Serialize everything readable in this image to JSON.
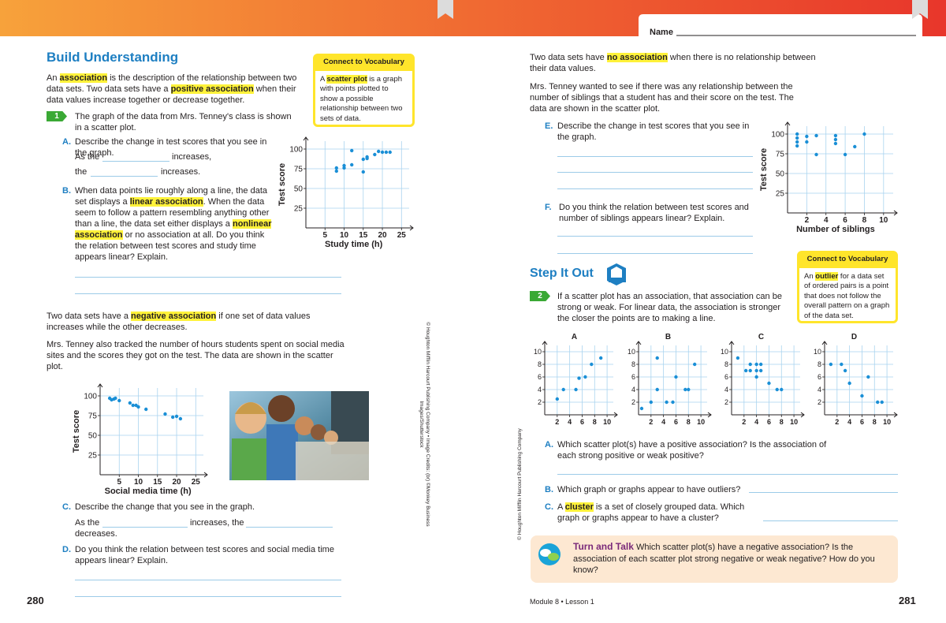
{
  "header": {
    "name_label": "Name"
  },
  "left": {
    "heading": "Build Understanding",
    "vocab1": {
      "title": "Connect to Vocabulary",
      "parts": [
        "A ",
        "scatter plot",
        " is a graph with points plotted to show a possible relationship between two sets of data."
      ]
    },
    "intro": [
      "An ",
      "association",
      " is the description of the relationship between two data sets. Two data sets have a ",
      "positive association",
      " when their data values increase together or decrease together."
    ],
    "step1": {
      "number": "1",
      "text": "The graph of the data from Mrs. Tenney's class is shown in a scatter plot."
    },
    "A": {
      "letter": "A.",
      "text": "Describe the change in test scores that you see in the graph.",
      "line1": [
        "As the",
        "increases,"
      ],
      "line2": [
        "the",
        "increases."
      ]
    },
    "B": {
      "letter": "B.",
      "parts": [
        "When data points lie roughly along a line, the data set displays a ",
        "linear association",
        ". When the data seem to follow a pattern resembling anything other than a line, the data set either displays a ",
        "nonlinear association",
        " or no association at all. Do you think the relation between test scores and study time appears linear? Explain."
      ]
    },
    "negative": [
      "Two data sets have a ",
      "negative association",
      " if one set of data values increases while the other decreases."
    ],
    "tracked": "Mrs. Tenney also tracked the number of hours students spent on social media sites and the scores they got on the test. The data are shown in the scatter plot.",
    "C": {
      "letter": "C.",
      "text": "Describe the change that you see in the graph.",
      "line": [
        "As the",
        "increases, the",
        "decreases."
      ]
    },
    "D": {
      "letter": "D.",
      "text": "Do you think the relation between test scores and social media time appears linear? Explain."
    },
    "credit": "© Houghton Mifflin Harcourt Publishing Company • Image Credits: (br) ©Monkey Business Images/Shutterstock",
    "page_number": "280"
  },
  "right": {
    "no_assoc": [
      "Two data sets have ",
      "no association",
      " when there is no relationship between their data values."
    ],
    "siblings": "Mrs. Tenney wanted to see if there was any relationship between the number of siblings that a student has and their score on the test. The data are shown in the scatter plot.",
    "E": {
      "letter": "E.",
      "text": "Describe the change in test scores that you see in the graph."
    },
    "F": {
      "letter": "F.",
      "text": "Do you think the relation between test scores and number of siblings appears linear? Explain."
    },
    "step_out": "Step It Out",
    "vocab2": {
      "title": "Connect to Vocabulary",
      "parts": [
        "An ",
        "outlier",
        " for a data set of ordered pairs is a point that does not follow the overall pattern on a graph of the data set."
      ]
    },
    "step2": {
      "number": "2",
      "text": "If a scatter plot has an association, that association can be strong or weak. For linear data, the association is stronger the closer the points are to making a line."
    },
    "qA": {
      "letter": "A.",
      "text": "Which scatter plot(s) have a positive association? Is the association of each strong positive or weak positive?"
    },
    "qB": {
      "letter": "B.",
      "text": "Which graph or graphs appear to have outliers?"
    },
    "qC": {
      "letter": "C.",
      "parts": [
        "A ",
        "cluster",
        " is a set of closely grouped data. Which graph or graphs appear to have a cluster?"
      ]
    },
    "turn": {
      "title": "Turn and Talk",
      "text": "Which scatter plot(s) have a negative association? Is the association of each scatter plot strong negative or weak negative? How do you know?"
    },
    "credit": "© Houghton Mifflin Harcourt Publishing Company",
    "footer": "Module 8 • Lesson 1",
    "page_number": "281"
  },
  "chart_data": [
    {
      "type": "scatter",
      "x_label": "Study time (h)",
      "y_label": "Test score",
      "color": "#1a8fd6",
      "xlim": [
        0,
        27
      ],
      "ylim": [
        0,
        110
      ],
      "xticks": [
        5,
        10,
        15,
        20,
        25
      ],
      "yticks": [
        25,
        50,
        75,
        100
      ],
      "x": [
        8,
        8,
        10,
        10,
        12,
        12,
        15,
        15,
        16,
        16,
        18,
        19,
        20,
        21,
        22
      ],
      "values": [
        72,
        76,
        76,
        79,
        80,
        98,
        71,
        87,
        90,
        88,
        93,
        97,
        96,
        96,
        96
      ]
    },
    {
      "type": "scatter",
      "x_label": "Social media time (h)",
      "y_label": "Test score",
      "color": "#1a8fd6",
      "xlim": [
        0,
        27
      ],
      "ylim": [
        0,
        110
      ],
      "xticks": [
        5,
        10,
        15,
        20,
        25
      ],
      "yticks": [
        25,
        50,
        75,
        100
      ],
      "x": [
        2.5,
        3,
        3.6,
        4,
        5,
        7.8,
        8.6,
        9.4,
        10,
        12,
        17,
        19,
        20,
        21
      ],
      "values": [
        97,
        95,
        96,
        97,
        94,
        91,
        88,
        88,
        86,
        83,
        77,
        73,
        74,
        71
      ]
    },
    {
      "type": "scatter",
      "x_label": "Number of siblings",
      "y_label": "Test score",
      "color": "#1a8fd6",
      "xlim": [
        0,
        11
      ],
      "ylim": [
        0,
        110
      ],
      "xticks": [
        2,
        4,
        6,
        8,
        10
      ],
      "yticks": [
        25,
        50,
        75,
        100
      ],
      "x": [
        1,
        1,
        1,
        1,
        2,
        2,
        3,
        3,
        5,
        5,
        5,
        6,
        7,
        8
      ],
      "values": [
        100,
        95,
        90,
        85,
        97,
        90,
        98,
        74,
        98,
        93,
        88,
        74,
        84,
        100
      ]
    },
    {
      "type": "scatter",
      "title": "A",
      "color": "#1a8fd6",
      "xlim": [
        0,
        11
      ],
      "ylim": [
        0,
        11
      ],
      "xticks": [
        2,
        4,
        6,
        8,
        10
      ],
      "yticks": [
        2,
        4,
        6,
        8,
        10
      ],
      "x": [
        2,
        3,
        5,
        5.5,
        6.5,
        7.5,
        9
      ],
      "values": [
        2.5,
        4,
        4,
        5.8,
        6,
        8,
        9
      ]
    },
    {
      "type": "scatter",
      "title": "B",
      "color": "#1a8fd6",
      "xlim": [
        0,
        11
      ],
      "ylim": [
        0,
        11
      ],
      "xticks": [
        2,
        4,
        6,
        8,
        10
      ],
      "yticks": [
        2,
        4,
        6,
        8,
        10
      ],
      "x": [
        0.5,
        2,
        3,
        3,
        4.5,
        5.5,
        6,
        7.5,
        8,
        9
      ],
      "values": [
        1,
        2,
        9,
        4,
        2,
        2,
        6,
        4,
        4,
        8
      ]
    },
    {
      "type": "scatter",
      "title": "C",
      "color": "#1a8fd6",
      "xlim": [
        0,
        11
      ],
      "ylim": [
        0,
        11
      ],
      "xticks": [
        2,
        4,
        6,
        8,
        10
      ],
      "yticks": [
        2,
        4,
        6,
        8,
        10
      ],
      "x": [
        1,
        2.3,
        3,
        3,
        4,
        4,
        4.7,
        4.7,
        4,
        6,
        7.3,
        8
      ],
      "values": [
        9,
        7,
        8,
        7,
        8,
        7,
        8,
        7,
        6,
        5,
        4,
        4
      ]
    },
    {
      "type": "scatter",
      "title": "D",
      "color": "#1a8fd6",
      "xlim": [
        0,
        11
      ],
      "ylim": [
        0,
        11
      ],
      "xticks": [
        2,
        4,
        6,
        8,
        10
      ],
      "yticks": [
        2,
        4,
        6,
        8,
        10
      ],
      "x": [
        1,
        2.7,
        3.3,
        7,
        4,
        6,
        8.5,
        9.2
      ],
      "values": [
        8,
        8,
        7,
        6,
        5,
        3,
        2,
        2
      ]
    }
  ]
}
